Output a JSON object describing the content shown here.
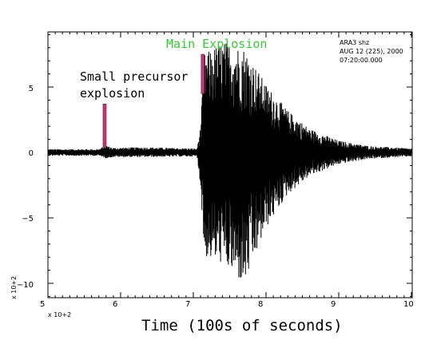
{
  "chart_data": {
    "type": "line",
    "xlabel": "Time (100s of seconds)",
    "x_multiplier_label": "x 10+2",
    "y_multiplier_label": "x 10+2",
    "xlim": [
      5,
      10
    ],
    "ylim": [
      -11,
      9.2
    ],
    "x_ticks": [
      5,
      6,
      7,
      8,
      9,
      10
    ],
    "y_ticks": [
      5,
      0,
      -5,
      -10
    ],
    "x_tick_labels": [
      "5",
      "6",
      "7",
      "8",
      "9",
      "10"
    ],
    "y_tick_labels": [
      "5",
      "0",
      "−5",
      "−10"
    ],
    "header": {
      "station": "ARA3  shz",
      "date": "AUG 12 (225), 2000",
      "time": "07:20:00.000"
    },
    "annotations": [
      {
        "text": "Main Explosion",
        "color": "#33cc33"
      },
      {
        "text": "Small precursor",
        "color": "#000000"
      },
      {
        "text": "explosion",
        "color": "#000000"
      }
    ],
    "markers": [
      {
        "name": "precursor",
        "x": 5.78,
        "y_range": [
          0.4,
          3.7
        ],
        "color": "#cc3377"
      },
      {
        "name": "main",
        "x": 7.13,
        "y_range": [
          4.5,
          7.5
        ],
        "color": "#cc3377"
      }
    ],
    "series": [
      {
        "color": "#000000",
        "envelope": [
          {
            "x": 5.0,
            "top": 0.25,
            "bottom": -0.25
          },
          {
            "x": 5.7,
            "top": 0.25,
            "bottom": -0.25
          },
          {
            "x": 5.8,
            "top": 0.55,
            "bottom": -0.45
          },
          {
            "x": 5.9,
            "top": 0.35,
            "bottom": -0.35
          },
          {
            "x": 6.3,
            "top": 0.4,
            "bottom": -0.35
          },
          {
            "x": 7.05,
            "top": 0.3,
            "bottom": -0.3
          },
          {
            "x": 7.1,
            "top": 2.0,
            "bottom": -2.5
          },
          {
            "x": 7.15,
            "top": 7.5,
            "bottom": -8.0
          },
          {
            "x": 7.4,
            "top": 8.5,
            "bottom": -8.5
          },
          {
            "x": 7.7,
            "top": 8.0,
            "bottom": -10.2
          },
          {
            "x": 8.0,
            "top": 5.2,
            "bottom": -5.8
          },
          {
            "x": 8.3,
            "top": 3.2,
            "bottom": -3.2
          },
          {
            "x": 8.6,
            "top": 1.8,
            "bottom": -1.8
          },
          {
            "x": 9.0,
            "top": 0.9,
            "bottom": -0.9
          },
          {
            "x": 9.4,
            "top": 0.5,
            "bottom": -0.5
          },
          {
            "x": 10.0,
            "top": 0.3,
            "bottom": -0.3
          }
        ]
      }
    ]
  }
}
